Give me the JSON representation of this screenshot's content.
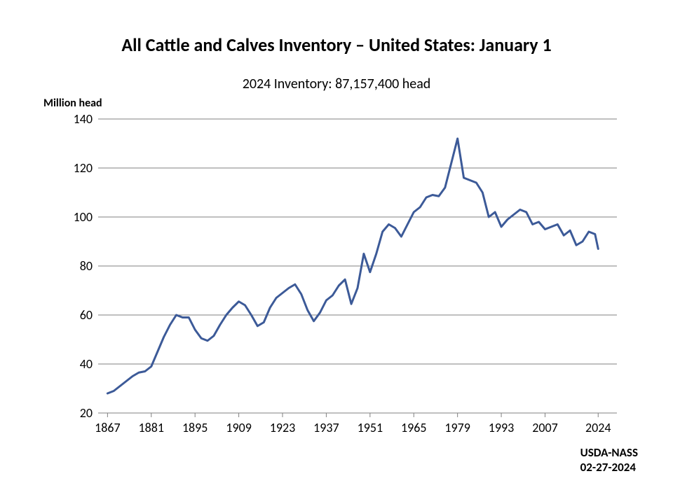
{
  "chart": {
    "title": "All Cattle and Calves Inventory – United States: January 1",
    "title_fontsize": 26,
    "title_fontweight": "bold",
    "subtitle": "2024 Inventory: 87,157,400 head",
    "subtitle_fontsize": 20,
    "y_axis_title": "Million head",
    "y_axis_title_fontsize": 16,
    "type": "line",
    "background_color": "#ffffff",
    "grid_color": "#808080",
    "axis_line_color": "#808080",
    "line_color": "#3c5a98",
    "line_width": 3,
    "tick_fontsize": 18,
    "xlim": [
      1864,
      2030
    ],
    "ylim": [
      20,
      140
    ],
    "ytick_step": 20,
    "yticks": [
      20,
      40,
      60,
      80,
      100,
      120,
      140
    ],
    "xticks": [
      1867,
      1881,
      1895,
      1909,
      1923,
      1937,
      1951,
      1965,
      1979,
      1993,
      2007,
      2024
    ],
    "series": {
      "years": [
        1867,
        1869,
        1871,
        1873,
        1875,
        1877,
        1879,
        1881,
        1883,
        1885,
        1887,
        1889,
        1891,
        1893,
        1895,
        1897,
        1899,
        1901,
        1903,
        1905,
        1907,
        1909,
        1911,
        1913,
        1915,
        1917,
        1919,
        1921,
        1923,
        1925,
        1927,
        1929,
        1931,
        1933,
        1935,
        1937,
        1939,
        1941,
        1943,
        1945,
        1947,
        1949,
        1951,
        1953,
        1955,
        1957,
        1959,
        1961,
        1963,
        1965,
        1967,
        1969,
        1971,
        1973,
        1975,
        1977,
        1979,
        1981,
        1983,
        1985,
        1987,
        1989,
        1991,
        1993,
        1995,
        1997,
        1999,
        2001,
        2003,
        2005,
        2007,
        2009,
        2011,
        2013,
        2015,
        2017,
        2019,
        2021,
        2023,
        2024
      ],
      "values": [
        28,
        29,
        31,
        33,
        35,
        36.5,
        37,
        39,
        45,
        51,
        56,
        60,
        59,
        59,
        54,
        50.5,
        49.5,
        51.5,
        56,
        60,
        63,
        65.5,
        64,
        60,
        55.5,
        57,
        63,
        67,
        69,
        71,
        72.5,
        68.5,
        62,
        57.5,
        61,
        66,
        68,
        72,
        74.5,
        64.5,
        71,
        85,
        77.5,
        85,
        94,
        97,
        95.5,
        92,
        97,
        102,
        104,
        108,
        109,
        108.5,
        112,
        122,
        132,
        116,
        115,
        114,
        110,
        100,
        102,
        96,
        99,
        101,
        103,
        102,
        97,
        98,
        95,
        96,
        97,
        92.5,
        94.5,
        88.5,
        90,
        94,
        93,
        87
      ]
    },
    "source_line1": "USDA-NASS",
    "source_line2": "02-27-2024",
    "source_fontsize": 17
  }
}
